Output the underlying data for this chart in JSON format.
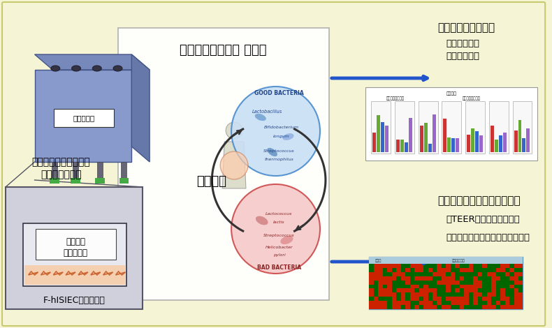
{
  "bg_color": "#f5f5d5",
  "title_text": "腸内細菌－腸細胞 共培養",
  "left_label1": "嫌気・好気を両立する",
  "left_label2": "共培養デバイス",
  "inner_label1": "腸内細菌",
  "inner_label2": "（嫌気性）",
  "inner_label3": "F-hISIEC（好気性）",
  "arrow_top_text": "・腸内細菌への影響",
  "arrow_top_sub1": "・細菌数評価",
  "arrow_top_sub2": "・代謝物解析",
  "arrow_bot_text": "・細胞（ホスト）側への影響",
  "arrow_bot_sub1": "・TEER　バリア機能評価",
  "arrow_bot_sub2": "・遺伝子発現・サイトカイン解析",
  "mutual_text": "相互作用",
  "good_bacteria_text": "GOOD BACTERIA",
  "bad_bacteria_text": "BAD BACTERIA",
  "device_label": "酸素吸収剤"
}
